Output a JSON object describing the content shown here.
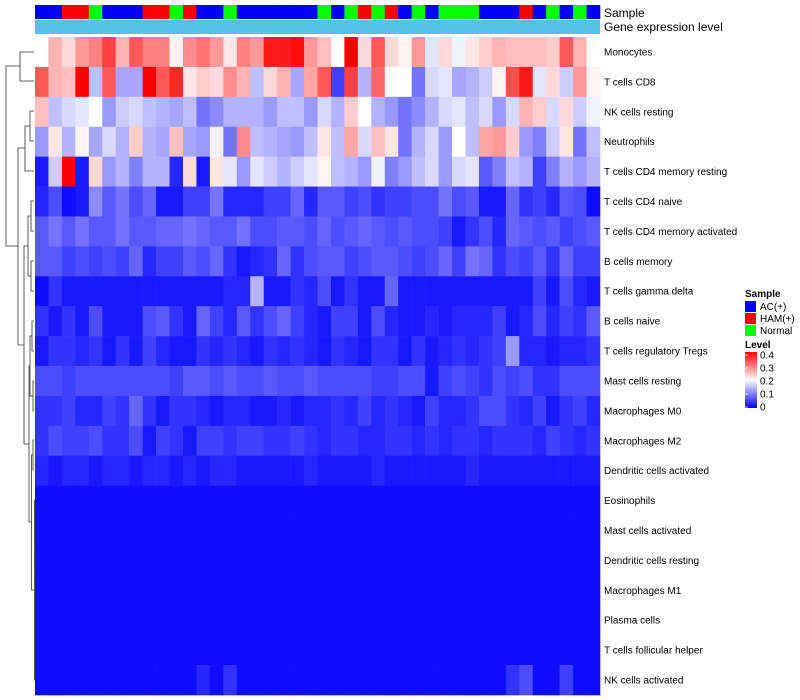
{
  "chart_data": {
    "type": "heatmap",
    "annotation_labels": {
      "sample": "Sample",
      "gene_expression": "Gene expression level"
    },
    "colors": {
      "low": "#0000ff",
      "mid": "#ffffff",
      "high": "#ff0000",
      "gene_expression_bar": "#56c3e6",
      "AC(+)": "#0000ff",
      "HAM(+)": "#ff0000",
      "Normal": "#00ff00"
    },
    "samples": [
      "AC(+)",
      "AC(+)",
      "HAM(+)",
      "HAM(+)",
      "Normal",
      "AC(+)",
      "AC(+)",
      "AC(+)",
      "HAM(+)",
      "HAM(+)",
      "Normal",
      "HAM(+)",
      "AC(+)",
      "AC(+)",
      "Normal",
      "AC(+)",
      "AC(+)",
      "AC(+)",
      "AC(+)",
      "AC(+)",
      "AC(+)",
      "Normal",
      "AC(+)",
      "Normal",
      "HAM(+)",
      "Normal",
      "HAM(+)",
      "AC(+)",
      "Normal",
      "AC(+)",
      "Normal",
      "Normal",
      "Normal",
      "AC(+)",
      "AC(+)",
      "AC(+)",
      "HAM(+)",
      "AC(+)",
      "Normal",
      "AC(+)",
      "Normal",
      "AC(+)"
    ],
    "rows": [
      {
        "name": "Monocytes",
        "values": [
          0.2,
          0.26,
          0.23,
          0.28,
          0.3,
          0.35,
          0.26,
          0.33,
          0.3,
          0.3,
          0.21,
          0.29,
          0.31,
          0.28,
          0.22,
          0.3,
          0.28,
          0.38,
          0.38,
          0.39,
          0.28,
          0.25,
          0.2,
          0.4,
          0.23,
          0.33,
          0.23,
          0.21,
          0.28,
          0.18,
          0.23,
          0.19,
          0.22,
          0.24,
          0.26,
          0.25,
          0.25,
          0.25,
          0.24,
          0.33,
          0.26,
          0.2
        ]
      },
      {
        "name": "T cells CD8",
        "values": [
          0.33,
          0.26,
          0.25,
          0.4,
          0.15,
          0.33,
          0.13,
          0.13,
          0.4,
          0.33,
          0.37,
          0.22,
          0.24,
          0.23,
          0.29,
          0.26,
          0.15,
          0.23,
          0.26,
          0.13,
          0.27,
          0.33,
          0.05,
          0.35,
          0.14,
          0.32,
          0.2,
          0.2,
          0.09,
          0.17,
          0.18,
          0.13,
          0.14,
          0.16,
          0.21,
          0.34,
          0.38,
          0.18,
          0.23,
          0.16,
          0.28,
          0.21
        ]
      },
      {
        "name": "NK cells resting",
        "values": [
          0.25,
          0.15,
          0.17,
          0.18,
          0.2,
          0.12,
          0.16,
          0.17,
          0.15,
          0.14,
          0.13,
          0.15,
          0.09,
          0.11,
          0.14,
          0.14,
          0.14,
          0.12,
          0.15,
          0.15,
          0.12,
          0.17,
          0.14,
          0.24,
          0.2,
          0.14,
          0.12,
          0.09,
          0.11,
          0.14,
          0.17,
          0.18,
          0.15,
          0.17,
          0.12,
          0.17,
          0.26,
          0.24,
          0.17,
          0.23,
          0.16,
          0.19
        ]
      },
      {
        "name": "Neutrophils",
        "values": [
          0.12,
          0.22,
          0.14,
          0.21,
          0.13,
          0.17,
          0.14,
          0.24,
          0.14,
          0.13,
          0.25,
          0.13,
          0.12,
          0.19,
          0.09,
          0.29,
          0.15,
          0.14,
          0.13,
          0.12,
          0.15,
          0.22,
          0.15,
          0.27,
          0.17,
          0.25,
          0.22,
          0.09,
          0.14,
          0.17,
          0.12,
          0.2,
          0.15,
          0.27,
          0.28,
          0.24,
          0.12,
          0.1,
          0.16,
          0.22,
          0.09,
          0.15
        ]
      },
      {
        "name": "T cells CD4 memory resting",
        "values": [
          0.02,
          0.16,
          0.4,
          0.02,
          0.23,
          0.12,
          0.14,
          0.1,
          0.14,
          0.14,
          0.03,
          0.23,
          0.02,
          0.22,
          0.18,
          0.12,
          0.18,
          0.16,
          0.14,
          0.16,
          0.18,
          0.21,
          0.15,
          0.14,
          0.12,
          0.19,
          0.1,
          0.12,
          0.15,
          0.17,
          0.12,
          0.17,
          0.18,
          0.07,
          0.1,
          0.15,
          0.14,
          0.05,
          0.1,
          0.14,
          0.12,
          0.14
        ]
      },
      {
        "name": "T cells CD4 naive",
        "values": [
          0.03,
          0.06,
          0.01,
          0.02,
          0.11,
          0.07,
          0.09,
          0.06,
          0.08,
          0.02,
          0.02,
          0.05,
          0.05,
          0.09,
          0.03,
          0.03,
          0.03,
          0.05,
          0.05,
          0.08,
          0.03,
          0.07,
          0.07,
          0.05,
          0.06,
          0.04,
          0.05,
          0.05,
          0.06,
          0.06,
          0.09,
          0.06,
          0.07,
          0.02,
          0.02,
          0.08,
          0.04,
          0.05,
          0.03,
          0.07,
          0.06,
          0.01
        ]
      },
      {
        "name": "T cells CD4 memory activated",
        "values": [
          0.07,
          0.09,
          0.07,
          0.09,
          0.07,
          0.07,
          0.09,
          0.07,
          0.07,
          0.08,
          0.08,
          0.09,
          0.08,
          0.07,
          0.07,
          0.09,
          0.06,
          0.06,
          0.07,
          0.07,
          0.06,
          0.08,
          0.06,
          0.07,
          0.08,
          0.07,
          0.06,
          0.07,
          0.06,
          0.06,
          0.05,
          0.02,
          0.04,
          0.06,
          0.03,
          0.08,
          0.07,
          0.06,
          0.07,
          0.05,
          0.06,
          0.07
        ]
      },
      {
        "name": "B cells memory",
        "values": [
          0.07,
          0.07,
          0.05,
          0.06,
          0.05,
          0.06,
          0.05,
          0.08,
          0.03,
          0.05,
          0.05,
          0.07,
          0.06,
          0.08,
          0.04,
          0.02,
          0.03,
          0.04,
          0.08,
          0.04,
          0.06,
          0.07,
          0.07,
          0.05,
          0.06,
          0.07,
          0.07,
          0.06,
          0.05,
          0.06,
          0.08,
          0.05,
          0.09,
          0.08,
          0.04,
          0.06,
          0.05,
          0.07,
          0.04,
          0.08,
          0.05,
          0.05
        ]
      },
      {
        "name": "T cells gamma delta",
        "values": [
          0.01,
          0.04,
          0.02,
          0.02,
          0.02,
          0.02,
          0.02,
          0.02,
          0.02,
          0.02,
          0.02,
          0.02,
          0.02,
          0.02,
          0.03,
          0.03,
          0.14,
          0.02,
          0.02,
          0.04,
          0.03,
          0.06,
          0.02,
          0.04,
          0.02,
          0.02,
          0.08,
          0.02,
          0.02,
          0.02,
          0.02,
          0.02,
          0.02,
          0.02,
          0.02,
          0.02,
          0.02,
          0.05,
          0.02,
          0.06,
          0.03,
          0.02
        ]
      },
      {
        "name": "B cells naive",
        "values": [
          0.04,
          0.02,
          0.04,
          0.02,
          0.06,
          0.02,
          0.02,
          0.02,
          0.06,
          0.07,
          0.04,
          0.02,
          0.08,
          0.05,
          0.03,
          0.07,
          0.04,
          0.06,
          0.08,
          0.05,
          0.03,
          0.02,
          0.05,
          0.05,
          0.02,
          0.06,
          0.03,
          0.02,
          0.02,
          0.03,
          0.02,
          0.03,
          0.03,
          0.03,
          0.05,
          0.02,
          0.03,
          0.06,
          0.03,
          0.05,
          0.04,
          0.07
        ]
      },
      {
        "name": "T cells regulatory  Tregs",
        "values": [
          0.02,
          0.04,
          0.04,
          0.03,
          0.04,
          0.02,
          0.04,
          0.02,
          0.05,
          0.03,
          0.02,
          0.02,
          0.04,
          0.03,
          0.04,
          0.03,
          0.02,
          0.04,
          0.03,
          0.04,
          0.03,
          0.02,
          0.04,
          0.03,
          0.02,
          0.04,
          0.04,
          0.02,
          0.04,
          0.02,
          0.03,
          0.04,
          0.03,
          0.04,
          0.05,
          0.12,
          0.03,
          0.03,
          0.02,
          0.03,
          0.03,
          0.04
        ]
      },
      {
        "name": "Mast cells resting",
        "values": [
          0.06,
          0.06,
          0.05,
          0.06,
          0.06,
          0.06,
          0.06,
          0.06,
          0.06,
          0.06,
          0.05,
          0.07,
          0.07,
          0.06,
          0.07,
          0.06,
          0.06,
          0.07,
          0.06,
          0.06,
          0.07,
          0.06,
          0.06,
          0.06,
          0.06,
          0.05,
          0.05,
          0.06,
          0.06,
          0.02,
          0.05,
          0.06,
          0.05,
          0.04,
          0.06,
          0.05,
          0.06,
          0.04,
          0.04,
          0.06,
          0.06,
          0.06
        ]
      },
      {
        "name": "Macrophages M0",
        "values": [
          0.04,
          0.04,
          0.05,
          0.03,
          0.03,
          0.05,
          0.04,
          0.08,
          0.04,
          0.02,
          0.04,
          0.04,
          0.03,
          0.02,
          0.03,
          0.03,
          0.02,
          0.02,
          0.03,
          0.02,
          0.03,
          0.03,
          0.04,
          0.03,
          0.05,
          0.03,
          0.04,
          0.03,
          0.02,
          0.05,
          0.03,
          0.03,
          0.04,
          0.06,
          0.06,
          0.04,
          0.03,
          0.05,
          0.02,
          0.04,
          0.05,
          0.03
        ]
      },
      {
        "name": "Macrophages M2",
        "values": [
          0.04,
          0.06,
          0.05,
          0.05,
          0.06,
          0.04,
          0.04,
          0.06,
          0.02,
          0.05,
          0.04,
          0.02,
          0.05,
          0.05,
          0.04,
          0.05,
          0.05,
          0.04,
          0.04,
          0.05,
          0.04,
          0.03,
          0.04,
          0.04,
          0.03,
          0.03,
          0.04,
          0.04,
          0.03,
          0.04,
          0.03,
          0.04,
          0.04,
          0.03,
          0.04,
          0.04,
          0.04,
          0.03,
          0.05,
          0.04,
          0.03,
          0.04
        ]
      },
      {
        "name": "Dendritic cells activated",
        "values": [
          0.03,
          0.02,
          0.03,
          0.03,
          0.02,
          0.03,
          0.03,
          0.02,
          0.03,
          0.03,
          0.02,
          0.03,
          0.02,
          0.03,
          0.03,
          0.02,
          0.02,
          0.02,
          0.02,
          0.02,
          0.03,
          0.02,
          0.02,
          0.02,
          0.02,
          0.03,
          0.02,
          0.02,
          0.02,
          0.02,
          0.02,
          0.02,
          0.03,
          0.02,
          0.02,
          0.02,
          0.02,
          0.02,
          0.02,
          0.02,
          0.02,
          0.02
        ]
      },
      {
        "name": "Eosinophils",
        "values": [
          0.01,
          0.01,
          0.01,
          0.01,
          0.01,
          0.01,
          0.01,
          0.01,
          0.01,
          0.01,
          0.01,
          0.01,
          0.01,
          0.01,
          0.01,
          0.01,
          0.01,
          0.01,
          0.01,
          0.01,
          0.01,
          0.01,
          0.01,
          0.01,
          0.01,
          0.01,
          0.01,
          0.01,
          0.01,
          0.01,
          0.01,
          0.01,
          0.01,
          0.01,
          0.01,
          0.01,
          0.01,
          0.01,
          0.01,
          0.01,
          0.01,
          0.01
        ]
      },
      {
        "name": "Mast cells activated",
        "values": [
          0.01,
          0.01,
          0.01,
          0.01,
          0.01,
          0.01,
          0.01,
          0.01,
          0.01,
          0.01,
          0.01,
          0.01,
          0.01,
          0.01,
          0.01,
          0.01,
          0.01,
          0.01,
          0.01,
          0.01,
          0.01,
          0.01,
          0.01,
          0.01,
          0.01,
          0.01,
          0.01,
          0.01,
          0.01,
          0.01,
          0.01,
          0.01,
          0.01,
          0.01,
          0.01,
          0.01,
          0.01,
          0.01,
          0.01,
          0.01,
          0.01,
          0.01
        ]
      },
      {
        "name": "Dendritic cells resting",
        "values": [
          0.01,
          0.01,
          0.01,
          0.01,
          0.01,
          0.01,
          0.01,
          0.01,
          0.01,
          0.01,
          0.01,
          0.01,
          0.01,
          0.01,
          0.01,
          0.01,
          0.01,
          0.01,
          0.01,
          0.01,
          0.01,
          0.01,
          0.01,
          0.01,
          0.01,
          0.01,
          0.01,
          0.01,
          0.01,
          0.01,
          0.01,
          0.01,
          0.01,
          0.01,
          0.01,
          0.01,
          0.01,
          0.01,
          0.01,
          0.01,
          0.01,
          0.01
        ]
      },
      {
        "name": "Macrophages M1",
        "values": [
          0.01,
          0.01,
          0.01,
          0.01,
          0.01,
          0.01,
          0.01,
          0.01,
          0.01,
          0.01,
          0.01,
          0.01,
          0.01,
          0.01,
          0.01,
          0.01,
          0.01,
          0.01,
          0.01,
          0.01,
          0.01,
          0.01,
          0.01,
          0.01,
          0.01,
          0.01,
          0.01,
          0.01,
          0.01,
          0.01,
          0.01,
          0.01,
          0.01,
          0.01,
          0.01,
          0.01,
          0.01,
          0.01,
          0.01,
          0.01,
          0.01,
          0.01
        ]
      },
      {
        "name": "Plasma cells",
        "values": [
          0.01,
          0.01,
          0.01,
          0.01,
          0.01,
          0.01,
          0.01,
          0.01,
          0.01,
          0.01,
          0.01,
          0.01,
          0.01,
          0.01,
          0.01,
          0.01,
          0.01,
          0.01,
          0.01,
          0.01,
          0.01,
          0.01,
          0.01,
          0.01,
          0.01,
          0.01,
          0.01,
          0.01,
          0.01,
          0.01,
          0.01,
          0.01,
          0.01,
          0.01,
          0.01,
          0.01,
          0.01,
          0.01,
          0.01,
          0.01,
          0.01,
          0.01
        ]
      },
      {
        "name": "T cells follicular helper",
        "values": [
          0.01,
          0.01,
          0.01,
          0.01,
          0.01,
          0.01,
          0.01,
          0.01,
          0.01,
          0.01,
          0.01,
          0.01,
          0.01,
          0.01,
          0.01,
          0.01,
          0.01,
          0.01,
          0.01,
          0.01,
          0.01,
          0.01,
          0.01,
          0.01,
          0.01,
          0.01,
          0.01,
          0.01,
          0.01,
          0.01,
          0.01,
          0.01,
          0.01,
          0.01,
          0.01,
          0.01,
          0.01,
          0.01,
          0.01,
          0.01,
          0.01,
          0.01
        ]
      },
      {
        "name": "NK cells activated",
        "values": [
          0.01,
          0.01,
          0.01,
          0.01,
          0.01,
          0.01,
          0.01,
          0.01,
          0.01,
          0.01,
          0.01,
          0.01,
          0.03,
          0.01,
          0.04,
          0.01,
          0.01,
          0.01,
          0.01,
          0.01,
          0.01,
          0.01,
          0.01,
          0.01,
          0.01,
          0.01,
          0.01,
          0.01,
          0.01,
          0.01,
          0.01,
          0.01,
          0.01,
          0.01,
          0.01,
          0.04,
          0.06,
          0.01,
          0.01,
          0.05,
          0.01,
          0.01
        ]
      }
    ],
    "color_scale": {
      "min": 0,
      "mid": 0.2,
      "max": 0.4
    },
    "legend": {
      "sample_title": "Sample",
      "sample_items": [
        "AC(+)",
        "HAM(+)",
        "Normal"
      ],
      "level_title": "Level",
      "level_ticks": [
        "0.4",
        "0.3",
        "0.2",
        "0.1",
        "0"
      ],
      "placement": "right"
    }
  }
}
